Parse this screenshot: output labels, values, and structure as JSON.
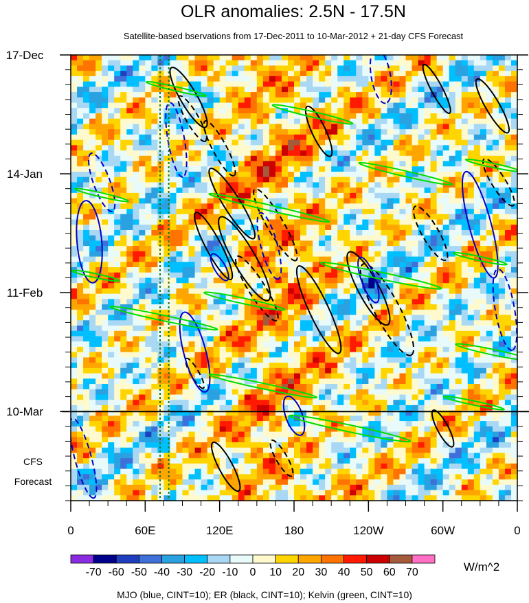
{
  "chart_data": {
    "type": "heatmap",
    "title": "OLR anomalies: 2.5N - 17.5N",
    "subtitle": "Satellite-based bservations from 17-Dec-2011 to 10-Mar-2012 + 21-day CFS Forecast",
    "x_tick_labels": [
      "0",
      "60E",
      "120E",
      "180",
      "120W",
      "60W",
      "0"
    ],
    "x_tick_degrees": [
      0,
      60,
      120,
      180,
      240,
      300,
      360
    ],
    "x_range_degrees": [
      0,
      360
    ],
    "y_tick_labels": [
      "17-Dec",
      "14-Jan",
      "11-Feb",
      "10-Mar"
    ],
    "y_tick_days": [
      0,
      28,
      56,
      84
    ],
    "y_range_days": [
      0,
      105
    ],
    "forecast_start_day": 84,
    "forecast_label_line1": "CFS",
    "forecast_label_line2": "Forecast",
    "reference_lines_degrees": [
      72,
      79
    ],
    "colorbar": {
      "ticks": [
        "-70",
        "-60",
        "-50",
        "-40",
        "-30",
        "-20",
        "-10",
        "0",
        "10",
        "20",
        "30",
        "40",
        "50",
        "60",
        "70"
      ],
      "colors": [
        "#8a2be2",
        "#00008b",
        "#1f3fbf",
        "#3f6fd8",
        "#2aa1e0",
        "#00bfff",
        "#a9d8f5",
        "#e8fafa",
        "#fffacd",
        "#ffd500",
        "#ffa500",
        "#ff7300",
        "#ff1a00",
        "#cc0000",
        "#a65a3c",
        "#ff6fc3"
      ],
      "units": "W/m^2"
    },
    "legend": "MJO (blue, CINT=10); ER (black, CINT=10); Kelvin (green, CINT=10)",
    "series_colors": {
      "MJO": "#0000cc",
      "ER": "#000000",
      "Kelvin": "#00dd00"
    }
  }
}
